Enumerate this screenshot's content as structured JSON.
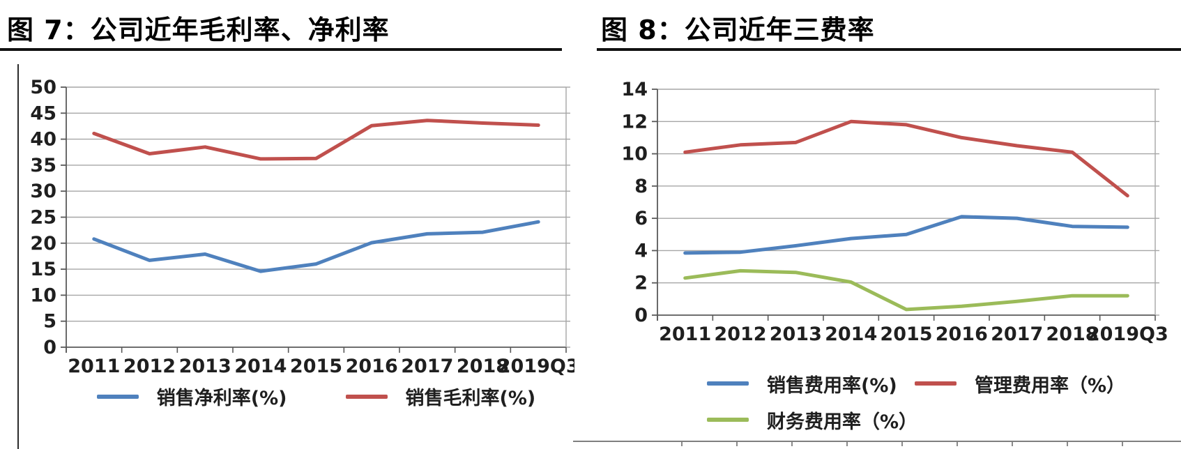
{
  "chart_data": [
    {
      "type": "line",
      "title": "图 7：公司近年毛利率、净利率",
      "categories": [
        "2011",
        "2012",
        "2013",
        "2014",
        "2015",
        "2016",
        "2017",
        "2018",
        "2019Q3"
      ],
      "series": [
        {
          "name": "销售净利率(%)",
          "color": "#4F81BD",
          "values": [
            20.8,
            16.7,
            17.9,
            14.6,
            16.0,
            20.1,
            21.8,
            22.1,
            24.1
          ]
        },
        {
          "name": "销售毛利率(%)",
          "color": "#C0504D",
          "values": [
            41.1,
            37.2,
            38.5,
            36.2,
            36.3,
            42.6,
            43.6,
            43.1,
            42.7
          ]
        }
      ],
      "xlabel": "",
      "ylabel": "",
      "ylim": [
        0,
        50
      ],
      "ytick_step": 5,
      "yticks": [
        0,
        5,
        10,
        15,
        20,
        25,
        30,
        35,
        40,
        45,
        50
      ],
      "grid": true,
      "legend_position": "bottom"
    },
    {
      "type": "line",
      "title": "图 8：公司近年三费率",
      "categories": [
        "2011",
        "2012",
        "2013",
        "2014",
        "2015",
        "2016",
        "2017",
        "2018",
        "2019Q3"
      ],
      "series": [
        {
          "name": "销售费用率(%)",
          "color": "#4F81BD",
          "values": [
            3.85,
            3.9,
            4.3,
            4.75,
            5.0,
            6.1,
            6.0,
            5.5,
            5.45
          ]
        },
        {
          "name": "管理费用率（%）",
          "color": "#C0504D",
          "values": [
            10.1,
            10.55,
            10.7,
            12.0,
            11.8,
            11.0,
            10.5,
            10.1,
            7.4
          ]
        },
        {
          "name": "财务费用率（%）",
          "color": "#9BBB59",
          "values": [
            2.3,
            2.75,
            2.65,
            2.05,
            0.35,
            0.55,
            0.85,
            1.2,
            1.2
          ]
        }
      ],
      "xlabel": "",
      "ylabel": "",
      "ylim": [
        0,
        14
      ],
      "ytick_step": 2,
      "yticks": [
        0,
        2,
        4,
        6,
        8,
        10,
        12,
        14
      ],
      "grid": true,
      "legend_position": "bottom"
    }
  ],
  "colors": {
    "grid": "#A6A6A6",
    "axis": "#595959",
    "title_rule": "#111111",
    "panel_border": "#2B2B2B"
  }
}
